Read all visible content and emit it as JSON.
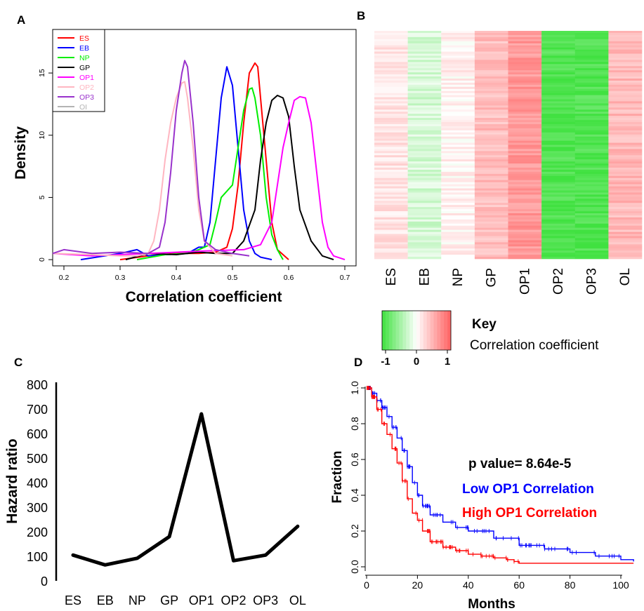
{
  "panels": {
    "a": "A",
    "b": "B",
    "c": "C",
    "d": "D"
  },
  "chart_data": [
    {
      "panel": "A",
      "type": "line",
      "xlabel": "Correlation coefficient",
      "ylabel": "Density",
      "xlim": [
        0.18,
        0.72
      ],
      "ylim": [
        -0.5,
        18.5
      ],
      "xticks": [
        "0.2",
        "0.3",
        "0.4",
        "0.5",
        "0.6",
        "0.7"
      ],
      "yticks": [
        "0",
        "5",
        "10",
        "15"
      ],
      "legend_position": "top-left",
      "series": [
        {
          "name": "ES",
          "color": "#ff0000",
          "x": [
            0.3,
            0.35,
            0.4,
            0.44,
            0.47,
            0.49,
            0.5,
            0.51,
            0.52,
            0.53,
            0.54,
            0.545,
            0.55,
            0.56,
            0.57,
            0.58,
            0.6
          ],
          "y": [
            0,
            0.3,
            0.5,
            0.5,
            0.6,
            1.0,
            2.5,
            6.0,
            11.0,
            15.0,
            15.8,
            15.5,
            13.0,
            8.0,
            3.0,
            0.8,
            0
          ]
        },
        {
          "name": "EB",
          "color": "#0000ff",
          "x": [
            0.23,
            0.3,
            0.33,
            0.35,
            0.38,
            0.42,
            0.44,
            0.45,
            0.46,
            0.47,
            0.48,
            0.49,
            0.5,
            0.51,
            0.52,
            0.53,
            0.54,
            0.55,
            0.57
          ],
          "y": [
            0,
            0.5,
            0.8,
            0.3,
            0.4,
            0.5,
            1.0,
            1.0,
            3.0,
            8.0,
            13.0,
            15.5,
            14.0,
            9.0,
            4.0,
            1.5,
            0.5,
            0.2,
            0
          ]
        },
        {
          "name": "NP",
          "color": "#00ee00",
          "x": [
            0.33,
            0.38,
            0.42,
            0.44,
            0.46,
            0.47,
            0.48,
            0.5,
            0.51,
            0.52,
            0.53,
            0.535,
            0.54,
            0.55,
            0.56,
            0.57,
            0.58,
            0.59
          ],
          "y": [
            0,
            0.4,
            0.5,
            0.8,
            1.2,
            3.0,
            5.0,
            6.0,
            9.0,
            12.0,
            13.7,
            13.8,
            13.0,
            10.0,
            5.0,
            2.0,
            0.8,
            0
          ]
        },
        {
          "name": "GP",
          "color": "#000000",
          "x": [
            0.31,
            0.35,
            0.4,
            0.44,
            0.47,
            0.5,
            0.52,
            0.54,
            0.55,
            0.56,
            0.57,
            0.58,
            0.59,
            0.6,
            0.61,
            0.62,
            0.64,
            0.66,
            0.68
          ],
          "y": [
            0,
            0.5,
            0.4,
            0.6,
            0.5,
            0.5,
            1.5,
            4.0,
            8.0,
            11.0,
            12.8,
            13.2,
            13.0,
            11.5,
            7.5,
            4.0,
            1.5,
            0.3,
            0
          ]
        },
        {
          "name": "OP1",
          "color": "#ff00ff",
          "x": [
            0.18,
            0.25,
            0.35,
            0.45,
            0.52,
            0.55,
            0.57,
            0.58,
            0.59,
            0.6,
            0.61,
            0.62,
            0.63,
            0.64,
            0.65,
            0.66,
            0.67,
            0.68,
            0.7
          ],
          "y": [
            0.5,
            0.3,
            0.5,
            0.7,
            0.8,
            1.2,
            3.0,
            6.0,
            9.0,
            11.0,
            12.8,
            13.1,
            13.0,
            11.0,
            7.0,
            3.0,
            1.0,
            0.3,
            0
          ]
        },
        {
          "name": "OP2",
          "color": "#ffb6c1",
          "x": [
            0.18,
            0.25,
            0.3,
            0.33,
            0.35,
            0.36,
            0.37,
            0.38,
            0.39,
            0.4,
            0.41,
            0.415,
            0.42,
            0.43,
            0.44,
            0.45,
            0.47,
            0.5
          ],
          "y": [
            0.5,
            0.4,
            0.3,
            0.3,
            0.5,
            1.5,
            4.0,
            8.0,
            11.0,
            13.0,
            14.2,
            14.3,
            13.0,
            9.0,
            4.0,
            1.5,
            0.5,
            0.3
          ]
        },
        {
          "name": "OP3",
          "color": "#9932cc",
          "x": [
            0.18,
            0.2,
            0.25,
            0.3,
            0.35,
            0.37,
            0.38,
            0.39,
            0.4,
            0.41,
            0.415,
            0.42,
            0.43,
            0.44,
            0.45,
            0.47,
            0.5,
            0.53
          ],
          "y": [
            0.5,
            0.8,
            0.5,
            0.6,
            0.5,
            1.0,
            3.0,
            7.0,
            12.0,
            15.0,
            16.0,
            15.5,
            11.0,
            5.0,
            1.5,
            0.8,
            0.5,
            0.3
          ]
        },
        {
          "name": "OI",
          "color": "#b3b3b3",
          "x": [],
          "y": []
        }
      ]
    },
    {
      "panel": "B",
      "type": "heatmap",
      "columns": [
        "ES",
        "EB",
        "NP",
        "GP",
        "OP1",
        "OP2",
        "OP3",
        "OL"
      ],
      "column_mean_correlation": [
        0.18,
        -0.22,
        0.08,
        0.42,
        0.65,
        -0.92,
        -0.92,
        0.45
      ],
      "color_key": {
        "title": "Key",
        "label": "Correlation coefficient",
        "ticks": [
          "-1",
          "0",
          "1"
        ],
        "low_color": "#00dd00",
        "mid_color": "#ffffff",
        "high_color": "#ff0000"
      }
    },
    {
      "panel": "C",
      "type": "line",
      "ylabel": "Hazard ratio",
      "categories": [
        "ES",
        "EB",
        "NP",
        "GP",
        "OP1",
        "OP2",
        "OP3",
        "OL"
      ],
      "values": [
        105,
        65,
        92,
        180,
        680,
        82,
        105,
        222
      ],
      "ylim": [
        0,
        800
      ],
      "yticks": [
        "0",
        "100",
        "200",
        "300",
        "400",
        "500",
        "600",
        "700",
        "800"
      ],
      "color": "#000000"
    },
    {
      "panel": "D",
      "type": "line",
      "xlabel": "Months",
      "ylabel": "Fraction",
      "xlim": [
        0,
        105
      ],
      "ylim": [
        0,
        1.0
      ],
      "xticks": [
        "0",
        "20",
        "40",
        "60",
        "80",
        "100"
      ],
      "yticks": [
        "0.0",
        "0.2",
        "0.4",
        "0.6",
        "0.8",
        "1.0"
      ],
      "annotation": "p value= 8.64e-5",
      "series": [
        {
          "name": "Low OP1 Correlation",
          "color": "#0000ff",
          "x": [
            0,
            2,
            4,
            6,
            8,
            10,
            12,
            14,
            16,
            18,
            20,
            22,
            25,
            30,
            35,
            40,
            50,
            60,
            70,
            80,
            90,
            100,
            105
          ],
          "y": [
            1.0,
            0.97,
            0.93,
            0.89,
            0.84,
            0.78,
            0.72,
            0.65,
            0.56,
            0.47,
            0.4,
            0.34,
            0.29,
            0.25,
            0.22,
            0.2,
            0.16,
            0.12,
            0.1,
            0.08,
            0.06,
            0.04,
            0.03
          ]
        },
        {
          "name": "High OP1 Correlation",
          "color": "#ff0000",
          "x": [
            0,
            2,
            4,
            6,
            8,
            10,
            12,
            14,
            16,
            18,
            20,
            22,
            25,
            30,
            35,
            40,
            45,
            50,
            55,
            58,
            60,
            80,
            105
          ],
          "y": [
            1.0,
            0.95,
            0.88,
            0.8,
            0.74,
            0.66,
            0.58,
            0.48,
            0.38,
            0.3,
            0.26,
            0.2,
            0.14,
            0.11,
            0.09,
            0.07,
            0.06,
            0.05,
            0.04,
            0.03,
            0.02,
            0.02,
            0.02
          ]
        }
      ]
    }
  ]
}
